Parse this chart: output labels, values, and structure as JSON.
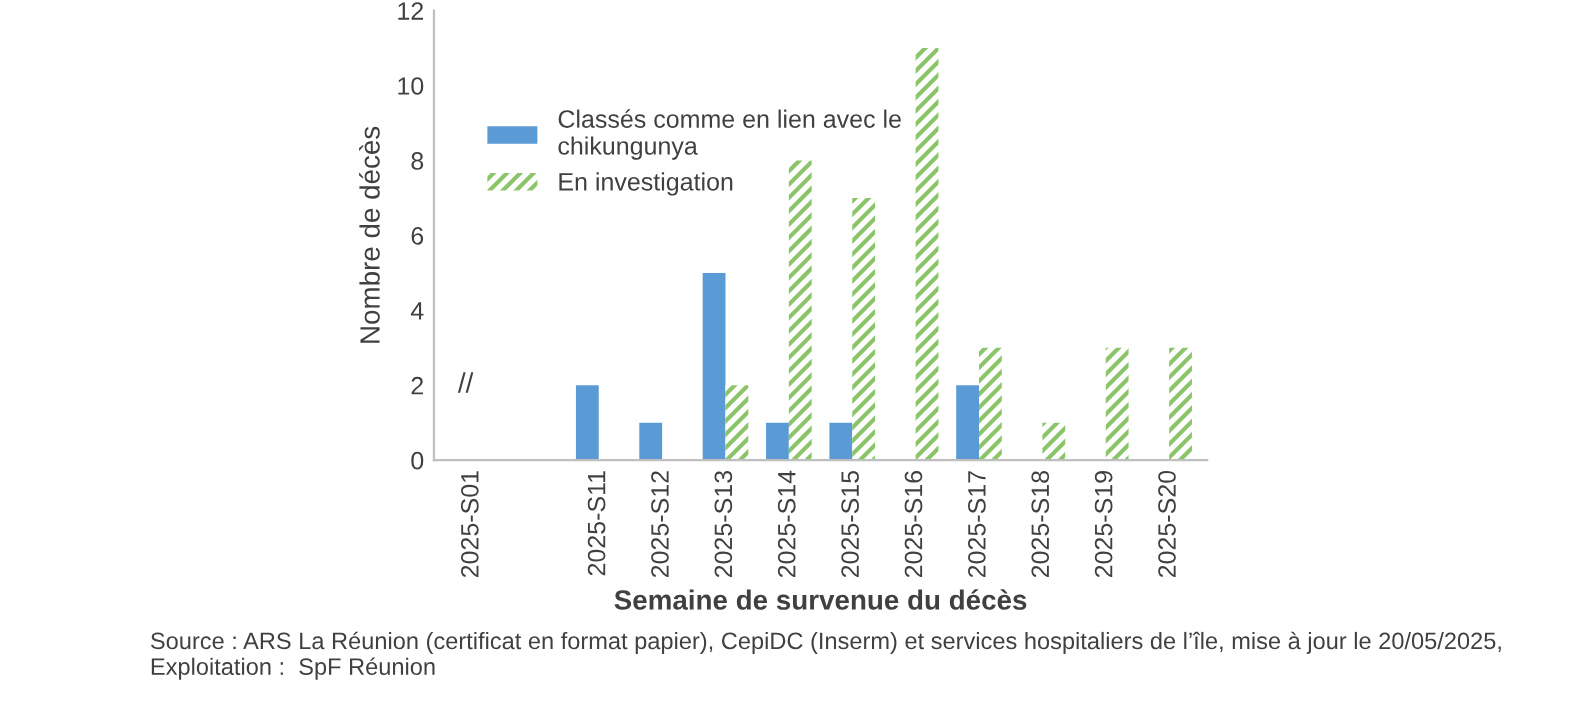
{
  "chart_data": {
    "type": "bar",
    "xlabel": "Semaine de survenue du décès",
    "ylabel": "Nombre de décès",
    "categories": [
      "2025-S01",
      null,
      "2025-S11",
      "2025-S12",
      "2025-S13",
      "2025-S14",
      "2025-S15",
      "2025-S16",
      "2025-S17",
      "2025-S18",
      "2025-S19",
      "2025-S20"
    ],
    "series": [
      {
        "name": "Classés comme en lien avec le\nchikungunya",
        "color": "#5b9bd5",
        "values": [
          0,
          null,
          2,
          1,
          5,
          1,
          1,
          0,
          2,
          0,
          0,
          0
        ]
      },
      {
        "name": "En investigation",
        "color": "#8cc46a",
        "values": [
          0,
          null,
          0,
          0,
          2,
          8,
          7,
          11,
          3,
          1,
          3,
          3
        ]
      }
    ],
    "ylim": [
      0,
      12
    ],
    "yticks": [
      0,
      2,
      4,
      6,
      8,
      10,
      12
    ],
    "grid": false,
    "legend": "top left",
    "annotations": [
      "//",
      "Source : ARS La Réunion (certificat en format papier), CepiDC (Inserm) et services hospitaliers de l’île, mise à jour le 20/05/2025,\nExploitation :  SpF Réunion"
    ]
  }
}
